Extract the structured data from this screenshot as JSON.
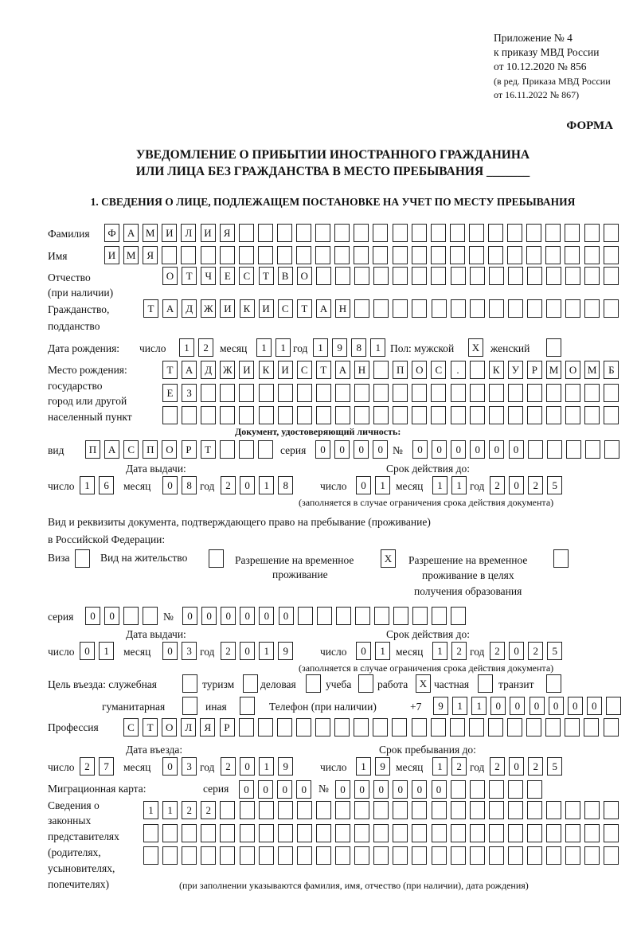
{
  "header": {
    "appendix_line1": "Приложение № 4",
    "appendix_line2": "к приказу МВД России",
    "appendix_line3": "от 10.12.2020 № 856",
    "amend_line1": "(в ред. Приказа МВД России",
    "amend_line2": "от 16.11.2022 № 867)",
    "form_label": "ФОРМА",
    "title_line1": "УВЕДОМЛЕНИЕ О ПРИБЫТИИ ИНОСТРАННОГО ГРАЖДАНИНА",
    "title_line2": "ИЛИ ЛИЦА БЕЗ ГРАЖДАНСТВА В МЕСТО ПРЕБЫВАНИЯ _______",
    "section1": "1. СВЕДЕНИЯ О ЛИЦЕ, ПОДЛЕЖАЩЕМ ПОСТАНОВКЕ НА УЧЕТ ПО МЕСТУ ПРЕБЫВАНИЯ"
  },
  "labels": {
    "surname": "Фамилия",
    "name": "Имя",
    "patronymic1": "Отчество",
    "patronymic2": "(при наличии)",
    "citizenship1": "Гражданство,",
    "citizenship2": "подданство",
    "birth_date": "Дата рождения:",
    "day": "число",
    "month": "месяц",
    "year": "год",
    "sex": "Пол: мужской",
    "female": "женский",
    "birthplace1": "Место рождения:",
    "birthplace2": "государство",
    "birthplace3": "город или другой",
    "birthplace4": "населенный пункт",
    "id_doc": "Документ, удостоверяющий личность:",
    "kind": "вид",
    "series": "серия",
    "number": "№",
    "issue_date": "Дата выдачи:",
    "valid_until": "Срок действия до:",
    "validity_note": "(заполняется в случае ограничения срока действия документа)",
    "right_doc1": "Вид и реквизиты документа, подтверждающего право на пребывание (проживание)",
    "right_doc2": "в Российской Федерации:",
    "visa": "Виза",
    "residence_permit": "Вид на жительство",
    "temp_residence1": "Разрешение на временное",
    "temp_residence2": "проживание",
    "temp_edu1": "Разрешение на временное",
    "temp_edu2": "проживание в целях",
    "temp_edu3": "получения образования",
    "purpose": "Цель въезда: служебная",
    "tourism": "туризм",
    "business": "деловая",
    "study": "учеба",
    "work": "работа",
    "private": "частная",
    "transit": "транзит",
    "humanitarian": "гуманитарная",
    "other": "иная",
    "phone": "Телефон (при наличии)",
    "phone_prefix": "+7",
    "profession": "Профессия",
    "entry_date": "Дата въезда:",
    "stay_until": "Срок пребывания до:",
    "migration_card": "Миграционная карта:",
    "reps1": "Сведения о",
    "reps2": "законных",
    "reps3": "представителях",
    "reps4": "(родителях,",
    "reps5": "усыновителях,",
    "reps6": "попечителях)",
    "reps_note": "(при заполнении указываются фамилия, имя, отчество (при наличии), дата рождения)"
  },
  "fields": {
    "surname": "ФАМИЛИЯ",
    "name": "ИМЯ",
    "patronymic": "ОТЧЕСТВО",
    "citizenship": "ТАДЖИКИСТАН",
    "birth_day": "12",
    "birth_month": "11",
    "birth_year": "1981",
    "sex_male": "X",
    "sex_female": "",
    "birthplace_1": "ТАДЖИКИСТАН ПОС. КУРМОМБ",
    "birthplace_2": "ЕЗ",
    "birthplace_3": "",
    "id_kind": "ПАСПОРТ",
    "id_series": "0000",
    "id_number": "000000",
    "id_issue_day": "16",
    "id_issue_month": "08",
    "id_issue_year": "2018",
    "id_valid_day": "01",
    "id_valid_month": "11",
    "id_valid_year": "2025",
    "right_visa": "",
    "right_residence_permit": "",
    "right_temp_residence": "X",
    "right_temp_edu": "",
    "right_series": "00",
    "right_number": "000000",
    "right_issue_day": "01",
    "right_issue_month": "03",
    "right_issue_year": "2019",
    "right_valid_day": "01",
    "right_valid_month": "12",
    "right_valid_year": "2025",
    "purpose_service": "",
    "purpose_tourism": "",
    "purpose_business": "",
    "purpose_study": "",
    "purpose_work": "X",
    "purpose_private": "",
    "purpose_transit": "",
    "purpose_humanitarian": "",
    "purpose_other": "",
    "phone": "911000000",
    "profession": "СТОЛЯР",
    "entry_day": "27",
    "entry_month": "03",
    "entry_year": "2019",
    "stay_day": "19",
    "stay_month": "12",
    "stay_year": "2025",
    "mc_series": "0000",
    "mc_number": "000000",
    "reps_1": "1122",
    "reps_2": "",
    "reps_3": ""
  }
}
